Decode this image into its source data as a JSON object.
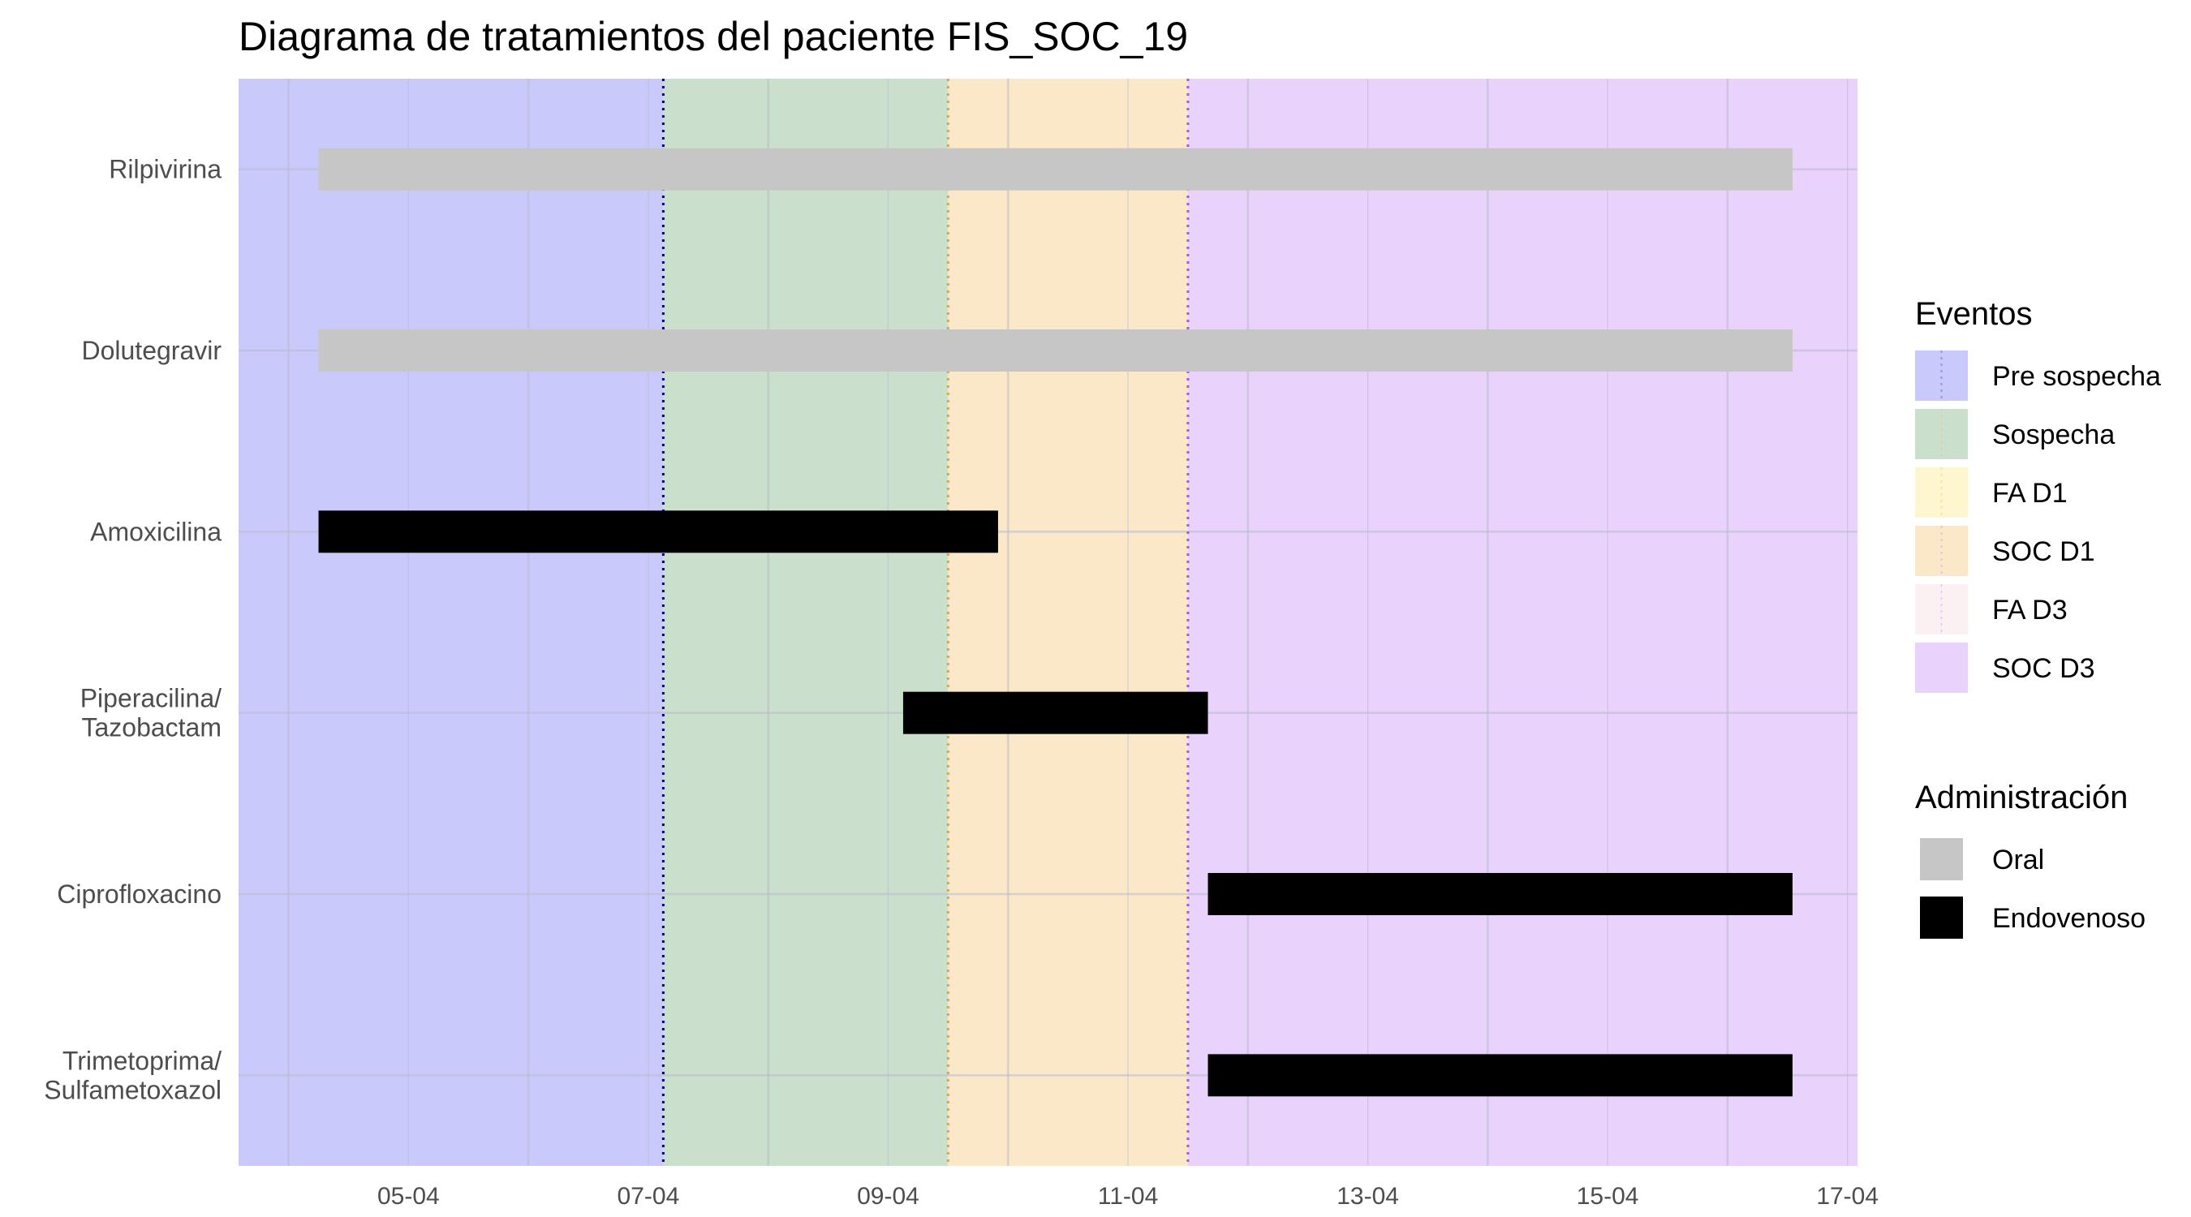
{
  "chart_data": {
    "type": "gantt",
    "title": "Diagrama de tratamientos del paciente FIS_SOC_19",
    "xlabel": "",
    "ylabel": "",
    "xlim": [
      "2024-04-03T14:00",
      "2024-04-17T02:00"
    ],
    "x_ticks": [
      {
        "date": "2024-04-05",
        "label": "05-04"
      },
      {
        "date": "2024-04-07",
        "label": "07-04"
      },
      {
        "date": "2024-04-09",
        "label": "09-04"
      },
      {
        "date": "2024-04-11",
        "label": "11-04"
      },
      {
        "date": "2024-04-13",
        "label": "13-04"
      },
      {
        "date": "2024-04-15",
        "label": "15-04"
      },
      {
        "date": "2024-04-17",
        "label": "17-04"
      }
    ],
    "grid": true,
    "events": [
      {
        "name": "Pre sospecha",
        "start": "2024-04-03T14:00",
        "end": "2024-04-07T03:00",
        "color": "#c9c9fb",
        "line_color": "#000066"
      },
      {
        "name": "Sospecha",
        "start": "2024-04-07T03:00",
        "end": "2024-04-09T12:00",
        "color": "#cbe0cc",
        "line_color": "#e6a23c"
      },
      {
        "name": "FA D1",
        "start": "2024-04-09T12:00",
        "end": "2024-04-09T12:00",
        "color": "#fdf6cf",
        "line_color": "#e6a23c"
      },
      {
        "name": "SOC D1",
        "start": "2024-04-09T12:00",
        "end": "2024-04-11T12:00",
        "color": "#fbe8c8",
        "line_color": "#9b5fd6"
      },
      {
        "name": "FA D3",
        "start": "2024-04-11T12:00",
        "end": "2024-04-11T12:00",
        "color": "#fbf0f2",
        "line_color": "#9b5fd6"
      },
      {
        "name": "SOC D3",
        "start": "2024-04-11T12:00",
        "end": "2024-04-17T02:00",
        "color": "#e9d2fb",
        "line_color": ""
      }
    ],
    "event_lines": [
      {
        "date": "2024-04-07T03:00",
        "color": "#000066"
      },
      {
        "date": "2024-04-09T12:00",
        "color": "#e6a23c"
      },
      {
        "date": "2024-04-11T12:00",
        "color": "#9b5fd6"
      }
    ],
    "administration": [
      {
        "name": "Oral",
        "color": "#c6c6c6"
      },
      {
        "name": "Endovenoso",
        "color": "#000000"
      }
    ],
    "treatments": [
      {
        "label_lines": [
          "Rilpivirina"
        ],
        "start": "2024-04-04T06:00",
        "end": "2024-04-16T13:00",
        "route": "Oral"
      },
      {
        "label_lines": [
          "Dolutegravir"
        ],
        "start": "2024-04-04T06:00",
        "end": "2024-04-16T13:00",
        "route": "Oral"
      },
      {
        "label_lines": [
          "Amoxicilina"
        ],
        "start": "2024-04-04T06:00",
        "end": "2024-04-09T22:00",
        "route": "Endovenoso"
      },
      {
        "label_lines": [
          "Piperacilina/",
          "Tazobactam"
        ],
        "start": "2024-04-09T03:00",
        "end": "2024-04-11T16:00",
        "route": "Endovenoso"
      },
      {
        "label_lines": [
          "Ciprofloxacino"
        ],
        "start": "2024-04-11T16:00",
        "end": "2024-04-16T13:00",
        "route": "Endovenoso"
      },
      {
        "label_lines": [
          "Trimetoprima/",
          "Sulfametoxazol"
        ],
        "start": "2024-04-11T16:00",
        "end": "2024-04-16T13:00",
        "route": "Endovenoso"
      }
    ],
    "legends": [
      {
        "title": "Eventos",
        "placement": "right"
      },
      {
        "title": "Administración",
        "placement": "right"
      }
    ]
  }
}
